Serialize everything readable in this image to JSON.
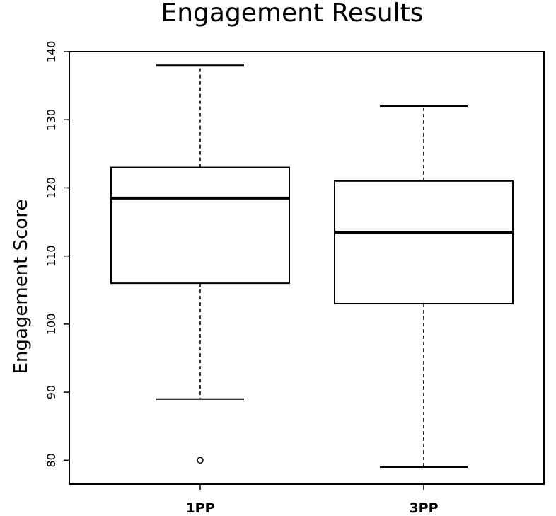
{
  "chart_data": {
    "type": "boxplot",
    "title": "Engagement Results",
    "xlabel": "",
    "ylabel": "Engagement Score",
    "ylim": [
      76.5,
      140
    ],
    "yticks": [
      80,
      90,
      100,
      110,
      120,
      130,
      140
    ],
    "grid": false,
    "categories": [
      "1PP",
      "3PP"
    ],
    "boxes": [
      {
        "category": "1PP",
        "whisker_low": 89,
        "q1": 106,
        "median": 118.5,
        "q3": 123,
        "whisker_high": 138,
        "outliers": [
          80
        ]
      },
      {
        "category": "3PP",
        "whisker_low": 79,
        "q1": 103,
        "median": 113.5,
        "q3": 121,
        "whisker_high": 132,
        "outliers": []
      }
    ]
  }
}
